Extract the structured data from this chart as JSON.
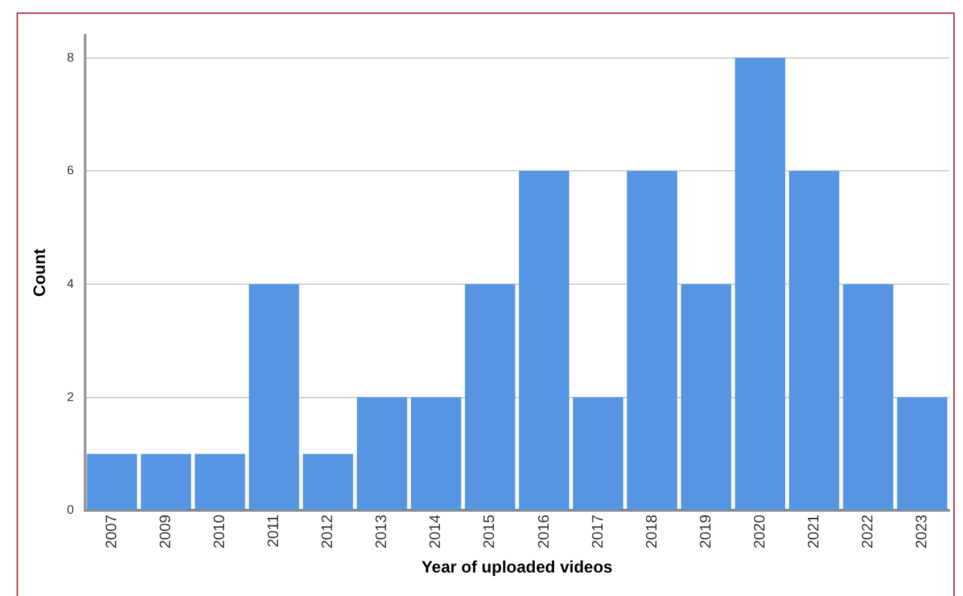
{
  "chart_data": {
    "type": "bar",
    "xlabel": "Year of uploaded videos",
    "ylabel": "Count",
    "categories": [
      "2007",
      "2009",
      "2010",
      "2011",
      "2012",
      "2013",
      "2014",
      "2015",
      "2016",
      "2017",
      "2018",
      "2019",
      "2020",
      "2021",
      "2022",
      "2023"
    ],
    "values": [
      1,
      1,
      1,
      4,
      1,
      2,
      2,
      4,
      6,
      2,
      6,
      4,
      8,
      6,
      4,
      2
    ],
    "color": "#5595e2",
    "ylim": [
      0,
      8.4
    ],
    "yticks": [
      0,
      2,
      4,
      6,
      8
    ],
    "grid": "y",
    "legend": false
  }
}
